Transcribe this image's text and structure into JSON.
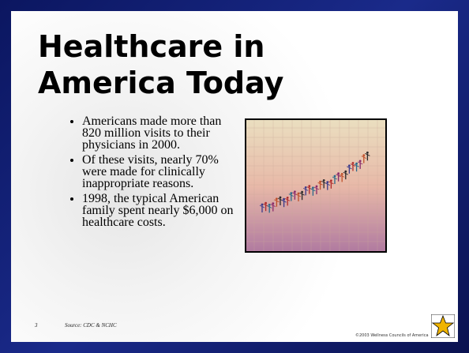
{
  "slide": {
    "title_lines": [
      "Healthcare in",
      "America Today"
    ],
    "bullets": [
      "Americans made more than 820 million visits to their physicians in 2000.",
      "Of these visits, nearly 70% were made for clinically inappropriate reasons.",
      "1998, the typical American family spent nearly $6,000 on healthcare costs."
    ],
    "footer": {
      "page": "3",
      "source": "Source: CDC & NCHC",
      "copyright": "©2003 Wellness Councils of America"
    }
  }
}
